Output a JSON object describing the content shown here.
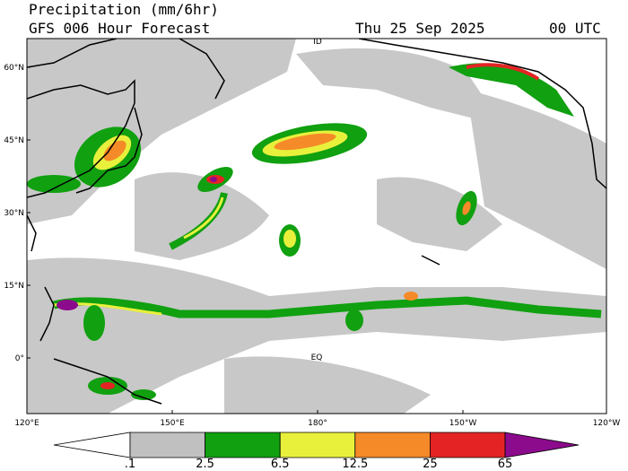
{
  "header": {
    "title": "Precipitation (mm/6hr)",
    "subtitle": "GFS 006 Hour Forecast",
    "date": "Thu 25 Sep 2025",
    "time": "00 UTC"
  },
  "map": {
    "lat_labels": [
      "60°N",
      "45°N",
      "30°N",
      "15°N",
      "0°"
    ],
    "lon_labels": [
      "120°E",
      "150°E",
      "180°",
      "150°W",
      "120°W"
    ],
    "annotations": [
      "EQ",
      "ID"
    ]
  },
  "legend": {
    "labels": [
      ".1",
      "2.5",
      "6.5",
      "12.5",
      "25",
      "65"
    ],
    "colors": [
      "#ffffff",
      "#c0c0c0",
      "#10a010",
      "#e8f03c",
      "#f58a28",
      "#e42424",
      "#8c0a8c"
    ]
  }
}
